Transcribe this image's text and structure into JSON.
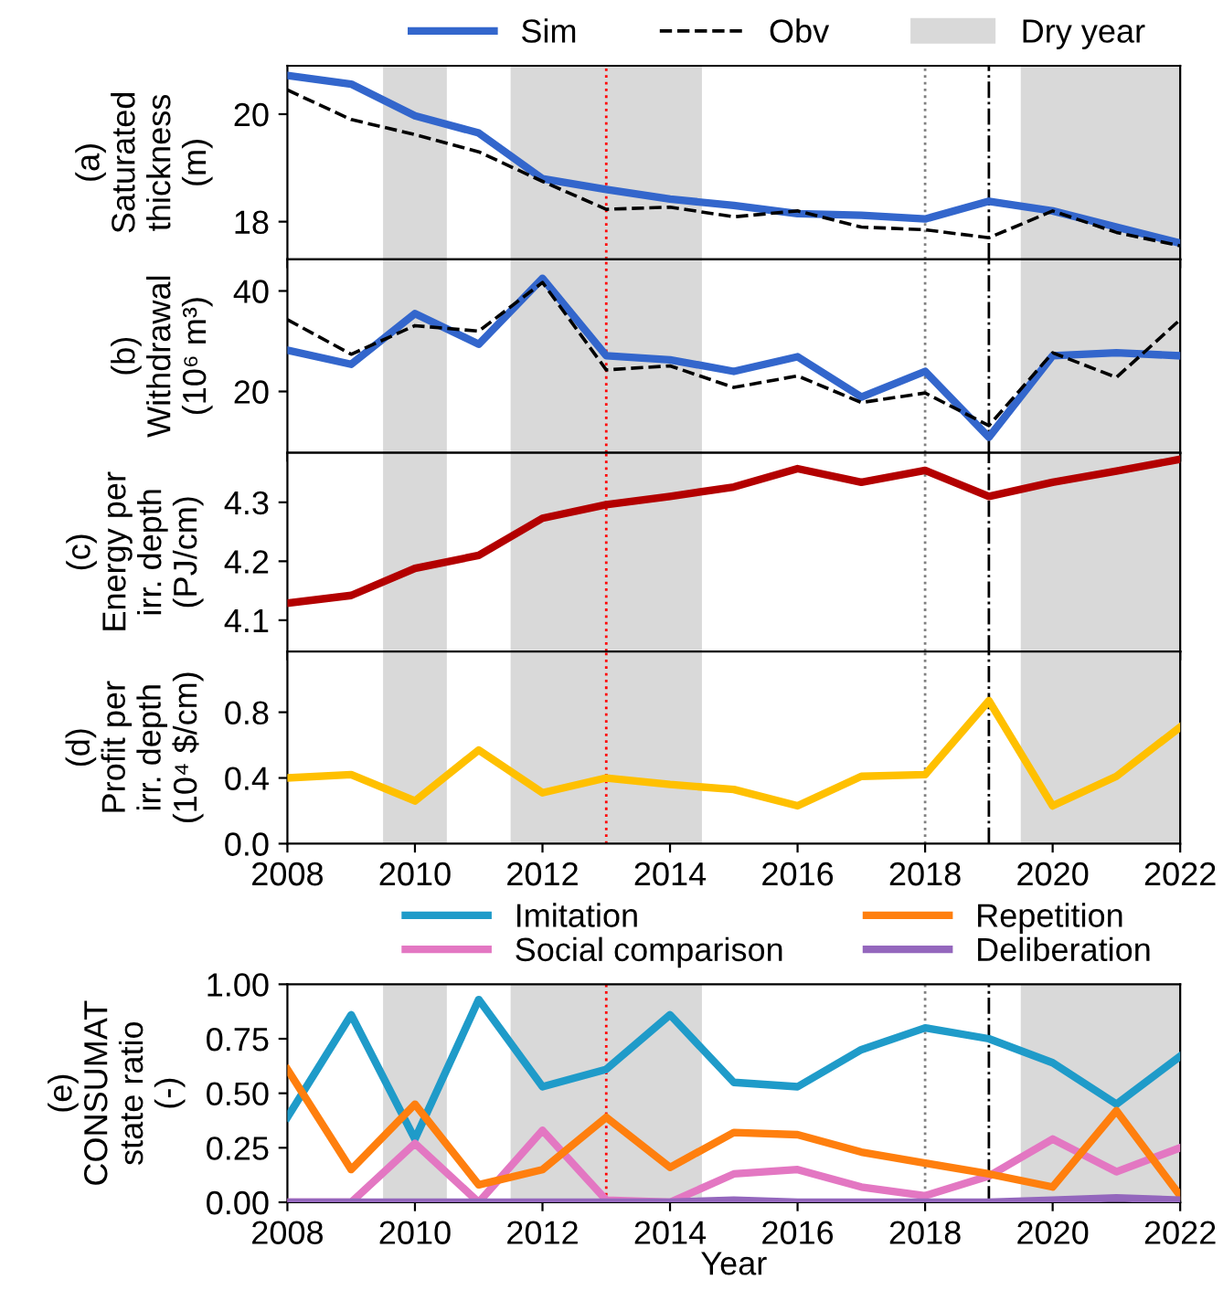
{
  "chart_data": [
    {
      "type": "line",
      "ylabel": "(a)\nSaturated\nthickness\n(m)",
      "x": [
        2008,
        2009,
        2010,
        2011,
        2012,
        2013,
        2014,
        2015,
        2016,
        2017,
        2018,
        2019,
        2020,
        2021,
        2022
      ],
      "xlim": [
        2008,
        2022
      ],
      "xticks": [
        2008,
        2010,
        2012,
        2014,
        2016,
        2018,
        2020,
        2022
      ],
      "ylim": [
        17.3,
        20.9
      ],
      "yticks": [
        18,
        20
      ],
      "tick_labels": "y",
      "legend": "top",
      "series": [
        {
          "name": "Sim",
          "color": "#3366cc",
          "line_style": "solid",
          "values": [
            20.72,
            20.56,
            19.97,
            19.65,
            18.8,
            18.6,
            18.42,
            18.3,
            18.15,
            18.12,
            18.05,
            18.38,
            18.2,
            17.9,
            17.6
          ]
        },
        {
          "name": "Obv",
          "color": "#000000",
          "line_style": "dashed",
          "values": [
            20.45,
            19.9,
            19.62,
            19.3,
            18.75,
            18.23,
            18.27,
            18.09,
            18.2,
            17.9,
            17.85,
            17.7,
            18.2,
            17.8,
            17.55
          ]
        }
      ],
      "bands": [
        {
          "axis": "x",
          "from": 2009.5,
          "to": 2010.5,
          "color": "#d9d9d9",
          "label": "Dry year"
        },
        {
          "axis": "x",
          "from": 2011.5,
          "to": 2014.5,
          "color": "#d9d9d9"
        },
        {
          "axis": "x",
          "from": 2019.5,
          "to": 2022,
          "color": "#d9d9d9"
        }
      ],
      "ref_lines": [
        {
          "axis": "x",
          "value": 2013,
          "color": "#ff0000",
          "line_style": "dotted"
        },
        {
          "axis": "x",
          "value": 2018,
          "color": "#808080",
          "line_style": "dotted"
        },
        {
          "axis": "x",
          "value": 2019,
          "color": "#000000",
          "line_style": "dashdot"
        }
      ]
    },
    {
      "type": "line",
      "ylabel": "(b)\nWithdrawal\n(10⁶ m³)",
      "x": [
        2008,
        2009,
        2010,
        2011,
        2012,
        2013,
        2014,
        2015,
        2016,
        2017,
        2018,
        2019,
        2020,
        2021,
        2022
      ],
      "xlim": [
        2008,
        2022
      ],
      "xticks": [
        2008,
        2010,
        2012,
        2014,
        2016,
        2018,
        2020,
        2022
      ],
      "ylim": [
        7.8,
        46.3
      ],
      "yticks": [
        20,
        40
      ],
      "tick_labels": "y",
      "series": [
        {
          "color": "#3366cc",
          "line_style": "solid",
          "values": [
            28.2,
            25.4,
            35.5,
            29.4,
            42.5,
            27.1,
            26.3,
            24,
            26.9,
            18.9,
            24,
            10.9,
            27.1,
            27.7,
            27.1
          ]
        },
        {
          "color": "#000000",
          "line_style": "dashed",
          "values": [
            34.3,
            27.4,
            33.1,
            32,
            41.7,
            24.3,
            25.1,
            20.8,
            23.1,
            17.8,
            19.7,
            13.2,
            27.7,
            22.8,
            34.3
          ]
        }
      ],
      "bands": [
        {
          "axis": "x",
          "from": 2009.5,
          "to": 2010.5,
          "color": "#d9d9d9"
        },
        {
          "axis": "x",
          "from": 2011.5,
          "to": 2014.5,
          "color": "#d9d9d9"
        },
        {
          "axis": "x",
          "from": 2019.5,
          "to": 2022,
          "color": "#d9d9d9"
        }
      ],
      "ref_lines": [
        {
          "axis": "x",
          "value": 2013,
          "color": "#ff0000",
          "line_style": "dotted"
        },
        {
          "axis": "x",
          "value": 2018,
          "color": "#808080",
          "line_style": "dotted"
        },
        {
          "axis": "x",
          "value": 2019,
          "color": "#000000",
          "line_style": "dashdot"
        }
      ]
    },
    {
      "type": "line",
      "ylabel": "(c)\nEnergy per\nirr. depth\n(PJ/cm)",
      "x": [
        2008,
        2009,
        2010,
        2011,
        2012,
        2013,
        2014,
        2015,
        2016,
        2017,
        2018,
        2019,
        2020,
        2021,
        2022
      ],
      "xlim": [
        2008,
        2022
      ],
      "xticks": [
        2008,
        2010,
        2012,
        2014,
        2016,
        2018,
        2020,
        2022
      ],
      "ylim": [
        4.047,
        4.384
      ],
      "yticks": [
        4.1,
        4.2,
        4.3
      ],
      "tick_labels": "y",
      "series": [
        {
          "color": "#b30000",
          "line_style": "solid",
          "values": [
            4.129,
            4.142,
            4.188,
            4.21,
            4.273,
            4.296,
            4.31,
            4.326,
            4.357,
            4.334,
            4.354,
            4.31,
            4.334,
            4.353,
            4.373
          ]
        }
      ],
      "bands": [
        {
          "axis": "x",
          "from": 2009.5,
          "to": 2010.5,
          "color": "#d9d9d9"
        },
        {
          "axis": "x",
          "from": 2011.5,
          "to": 2014.5,
          "color": "#d9d9d9"
        },
        {
          "axis": "x",
          "from": 2019.5,
          "to": 2022,
          "color": "#d9d9d9"
        }
      ],
      "ref_lines": [
        {
          "axis": "x",
          "value": 2013,
          "color": "#ff0000",
          "line_style": "dotted"
        },
        {
          "axis": "x",
          "value": 2018,
          "color": "#808080",
          "line_style": "dotted"
        },
        {
          "axis": "x",
          "value": 2019,
          "color": "#000000",
          "line_style": "dashdot"
        }
      ]
    },
    {
      "type": "line",
      "ylabel": "(d)\nProfit per\nirr. depth\n(10⁴ $/cm)",
      "x": [
        2008,
        2009,
        2010,
        2011,
        2012,
        2013,
        2014,
        2015,
        2016,
        2017,
        2018,
        2019,
        2020,
        2021,
        2022
      ],
      "xlim": [
        2008,
        2022
      ],
      "xticks": [
        2008,
        2010,
        2012,
        2014,
        2016,
        2018,
        2020,
        2022
      ],
      "ylim": [
        0,
        1.17
      ],
      "yticks": [
        {
          "value": 0,
          "label": "0.0"
        },
        0.4,
        0.8
      ],
      "series": [
        {
          "color": "#ffc000",
          "line_style": "solid",
          "values": [
            0.4,
            0.42,
            0.26,
            0.57,
            0.31,
            0.4,
            0.36,
            0.33,
            0.23,
            0.41,
            0.42,
            0.87,
            0.23,
            0.41,
            0.71
          ]
        }
      ],
      "bands": [
        {
          "axis": "x",
          "from": 2009.5,
          "to": 2010.5,
          "color": "#d9d9d9"
        },
        {
          "axis": "x",
          "from": 2011.5,
          "to": 2014.5,
          "color": "#d9d9d9"
        },
        {
          "axis": "x",
          "from": 2019.5,
          "to": 2022,
          "color": "#d9d9d9"
        }
      ],
      "ref_lines": [
        {
          "axis": "x",
          "value": 2013,
          "color": "#ff0000",
          "line_style": "dotted"
        },
        {
          "axis": "x",
          "value": 2018,
          "color": "#808080",
          "line_style": "dotted"
        },
        {
          "axis": "x",
          "value": 2019,
          "color": "#000000",
          "line_style": "dashdot"
        }
      ]
    },
    {
      "type": "line",
      "ylabel": "(e)\nCONSUMAT\nstate ratio\n(-)",
      "xlabel": "Year",
      "x": [
        2008,
        2009,
        2010,
        2011,
        2012,
        2013,
        2014,
        2015,
        2016,
        2017,
        2018,
        2019,
        2020,
        2021,
        2022
      ],
      "xlim": [
        2008,
        2022
      ],
      "xticks": [
        2008,
        2010,
        2012,
        2014,
        2016,
        2018,
        2020,
        2022
      ],
      "ylim": [
        0,
        1
      ],
      "yticks": [
        {
          "value": 0,
          "label": "0.00"
        },
        0.25,
        {
          "value": 0.5,
          "label": "0.50"
        },
        0.75,
        {
          "value": 1,
          "label": "1.00"
        }
      ],
      "legend": "top",
      "series": [
        {
          "name": "Imitation",
          "color": "#1f9bc9",
          "line_style": "solid",
          "values": [
            0.39,
            0.86,
            0.29,
            0.93,
            0.53,
            0.61,
            0.86,
            0.55,
            0.53,
            0.7,
            0.8,
            0.75,
            0.64,
            0.45,
            0.67
          ]
        },
        {
          "name": "Social comparison",
          "color": "#e377c2",
          "line_style": "solid",
          "values": [
            0,
            0,
            0.27,
            0,
            0.33,
            0.01,
            0,
            0.13,
            0.15,
            0.07,
            0.03,
            0.12,
            0.29,
            0.14,
            0.25
          ]
        },
        {
          "name": "Repetition",
          "color": "#ff7f0e",
          "line_style": "solid",
          "values": [
            0.61,
            0.15,
            0.45,
            0.08,
            0.15,
            0.39,
            0.16,
            0.32,
            0.31,
            0.23,
            0.18,
            0.13,
            0.07,
            0.42,
            0.03
          ]
        },
        {
          "name": "Deliberation",
          "color": "#9467bd",
          "line_style": "solid",
          "values": [
            0,
            0,
            0,
            0,
            0,
            0,
            0,
            0.01,
            0,
            0,
            0,
            0,
            0.01,
            0.02,
            0.01
          ]
        }
      ],
      "bands": [
        {
          "axis": "x",
          "from": 2009.5,
          "to": 2010.5,
          "color": "#d9d9d9"
        },
        {
          "axis": "x",
          "from": 2011.5,
          "to": 2014.5,
          "color": "#d9d9d9"
        },
        {
          "axis": "x",
          "from": 2019.5,
          "to": 2022,
          "color": "#d9d9d9"
        }
      ],
      "ref_lines": [
        {
          "axis": "x",
          "value": 2013,
          "color": "#ff0000",
          "line_style": "dotted"
        },
        {
          "axis": "x",
          "value": 2018,
          "color": "#808080",
          "line_style": "dotted"
        },
        {
          "axis": "x",
          "value": 2019,
          "color": "#000000",
          "line_style": "dashdot"
        }
      ]
    }
  ]
}
